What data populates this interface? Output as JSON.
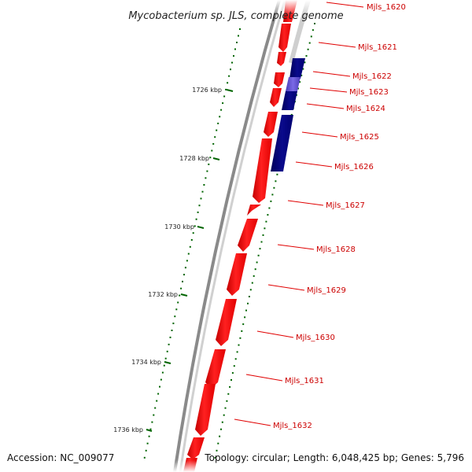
{
  "title": "Mycobacterium sp. JLS, complete genome",
  "footer": {
    "accession": "Accession: NC_009077",
    "topology": "Topology: circular; Length: 6,048,425 bp; Genes: 5,796"
  },
  "colors": {
    "forward_gene": "#ff0000",
    "reverse_gene": "#000080",
    "reverse_gene_light": "#6b5bd6",
    "label": "#cc0000",
    "tick": "#006400",
    "backbone": "#888888"
  },
  "kbp_labels": [
    "1726 kbp",
    "1728 kbp",
    "1730 kbp",
    "1732 kbp",
    "1734 kbp",
    "1736 kbp"
  ],
  "genes": [
    {
      "label": "Mjls_1620",
      "strand": "+"
    },
    {
      "label": "Mjls_1621",
      "strand": "-"
    },
    {
      "label": "Mjls_1622",
      "strand": "-"
    },
    {
      "label": "Mjls_1623",
      "strand": "-"
    },
    {
      "label": "Mjls_1624",
      "strand": "-"
    },
    {
      "label": "Mjls_1625",
      "strand": "-"
    },
    {
      "label": "Mjls_1626",
      "strand": "-"
    },
    {
      "label": "Mjls_1627",
      "strand": "+"
    },
    {
      "label": "Mjls_1628",
      "strand": "+"
    },
    {
      "label": "Mjls_1629",
      "strand": "+"
    },
    {
      "label": "Mjls_1630",
      "strand": "+"
    },
    {
      "label": "Mjls_1631",
      "strand": "+"
    },
    {
      "label": "Mjls_1632",
      "strand": "+"
    }
  ]
}
